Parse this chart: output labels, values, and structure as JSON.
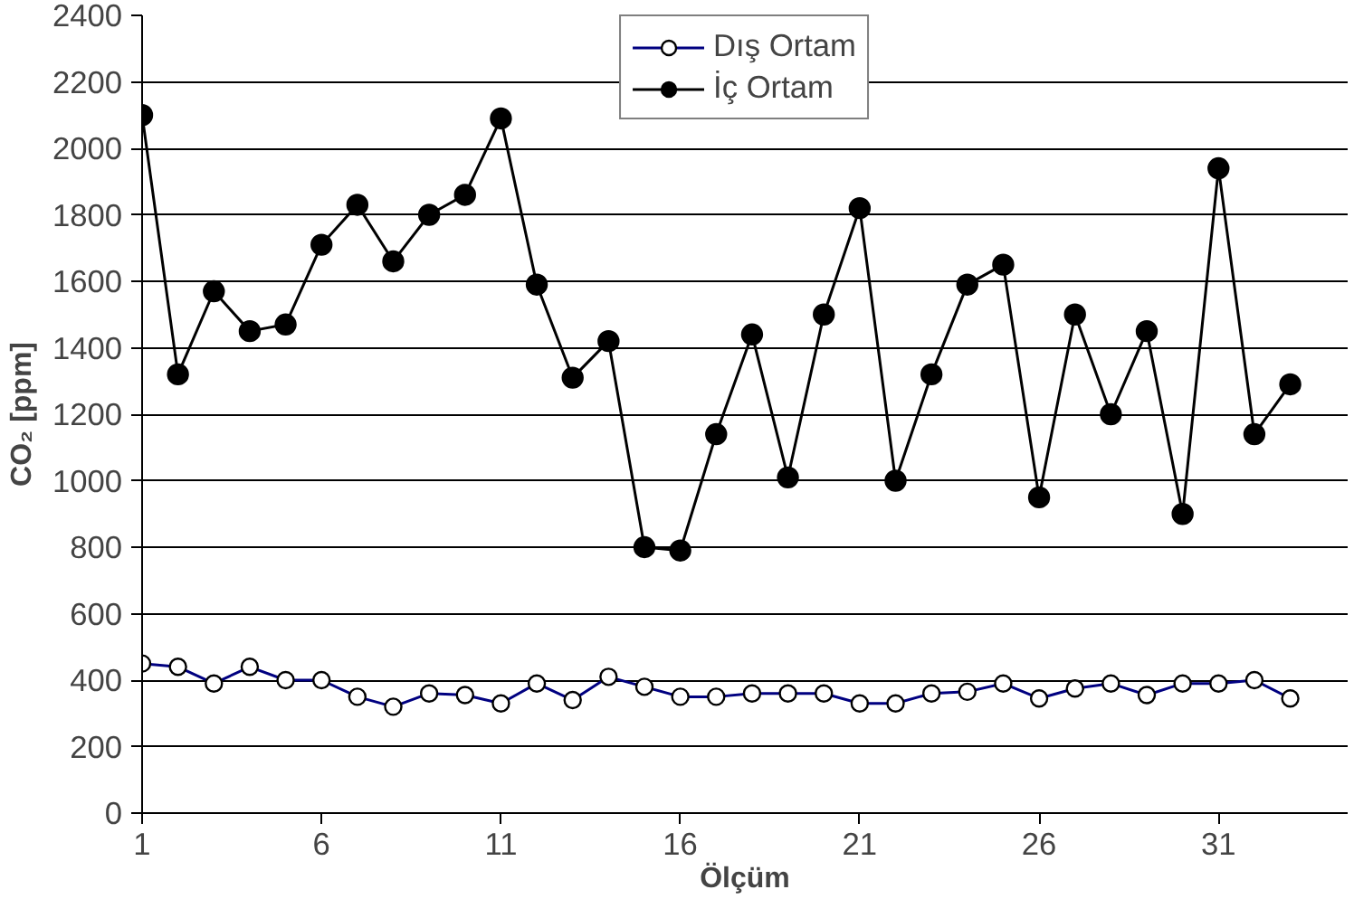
{
  "chart_data": {
    "type": "line",
    "xlabel": "Ölçüm",
    "ylabel": "CO₂ [ppm]",
    "x": [
      1,
      2,
      3,
      4,
      5,
      6,
      7,
      8,
      9,
      10,
      11,
      12,
      13,
      14,
      15,
      16,
      17,
      18,
      19,
      20,
      21,
      22,
      23,
      24,
      25,
      26,
      27,
      28,
      29,
      30,
      31,
      32,
      33
    ],
    "xlim": [
      1,
      34.6
    ],
    "xticks": [
      1,
      6,
      11,
      16,
      21,
      26,
      31
    ],
    "ylim": [
      0,
      2400
    ],
    "yticks": [
      0,
      200,
      400,
      600,
      800,
      1000,
      1200,
      1400,
      1600,
      1800,
      2000,
      2200,
      2400
    ],
    "grid": "y",
    "legend": "top",
    "marker": "circle",
    "line_style": "solid",
    "series": [
      {
        "name": "Dış Ortam",
        "color": "#000080",
        "values": [
          450,
          440,
          390,
          440,
          400,
          400,
          350,
          320,
          360,
          355,
          330,
          390,
          340,
          410,
          380,
          350,
          350,
          360,
          360,
          360,
          330,
          330,
          360,
          365,
          390,
          345,
          375,
          390,
          355,
          390,
          390,
          400,
          345
        ]
      },
      {
        "name": "İç Ortam",
        "color": "#000000",
        "values": [
          2100,
          1320,
          1570,
          1450,
          1470,
          1710,
          1830,
          1660,
          1800,
          1860,
          2090,
          1590,
          1310,
          1420,
          800,
          790,
          1140,
          1440,
          1010,
          1500,
          1820,
          1000,
          1320,
          1590,
          1650,
          950,
          1500,
          1200,
          1450,
          900,
          1940,
          1140,
          1290
        ]
      }
    ]
  }
}
